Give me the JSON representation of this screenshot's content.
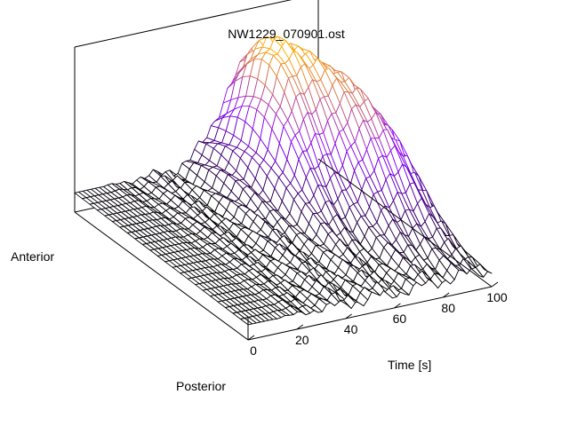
{
  "chart_data": {
    "type": "surface",
    "title": "NW1229_070901.ost",
    "xlabel": "Time [s]",
    "ylabel_top": "Anterior",
    "ylabel_bottom": "Posterior",
    "xlim": [
      0,
      100
    ],
    "x_ticks": [
      "0",
      "20",
      "40",
      "60",
      "80",
      "100"
    ],
    "positions": 24,
    "times": 60,
    "flat_until_time": 10,
    "bumps": [
      {
        "center_time": 71,
        "center_position": 0.8,
        "height": 1.0,
        "time_width": 11,
        "position_width": 0.22
      },
      {
        "center_time": 88,
        "center_position": 0.52,
        "height": 0.65,
        "time_width": 8,
        "position_width": 0.2
      }
    ],
    "color_scale": [
      "#000000",
      "#8800ff",
      "#ffb000"
    ],
    "grid": false
  }
}
